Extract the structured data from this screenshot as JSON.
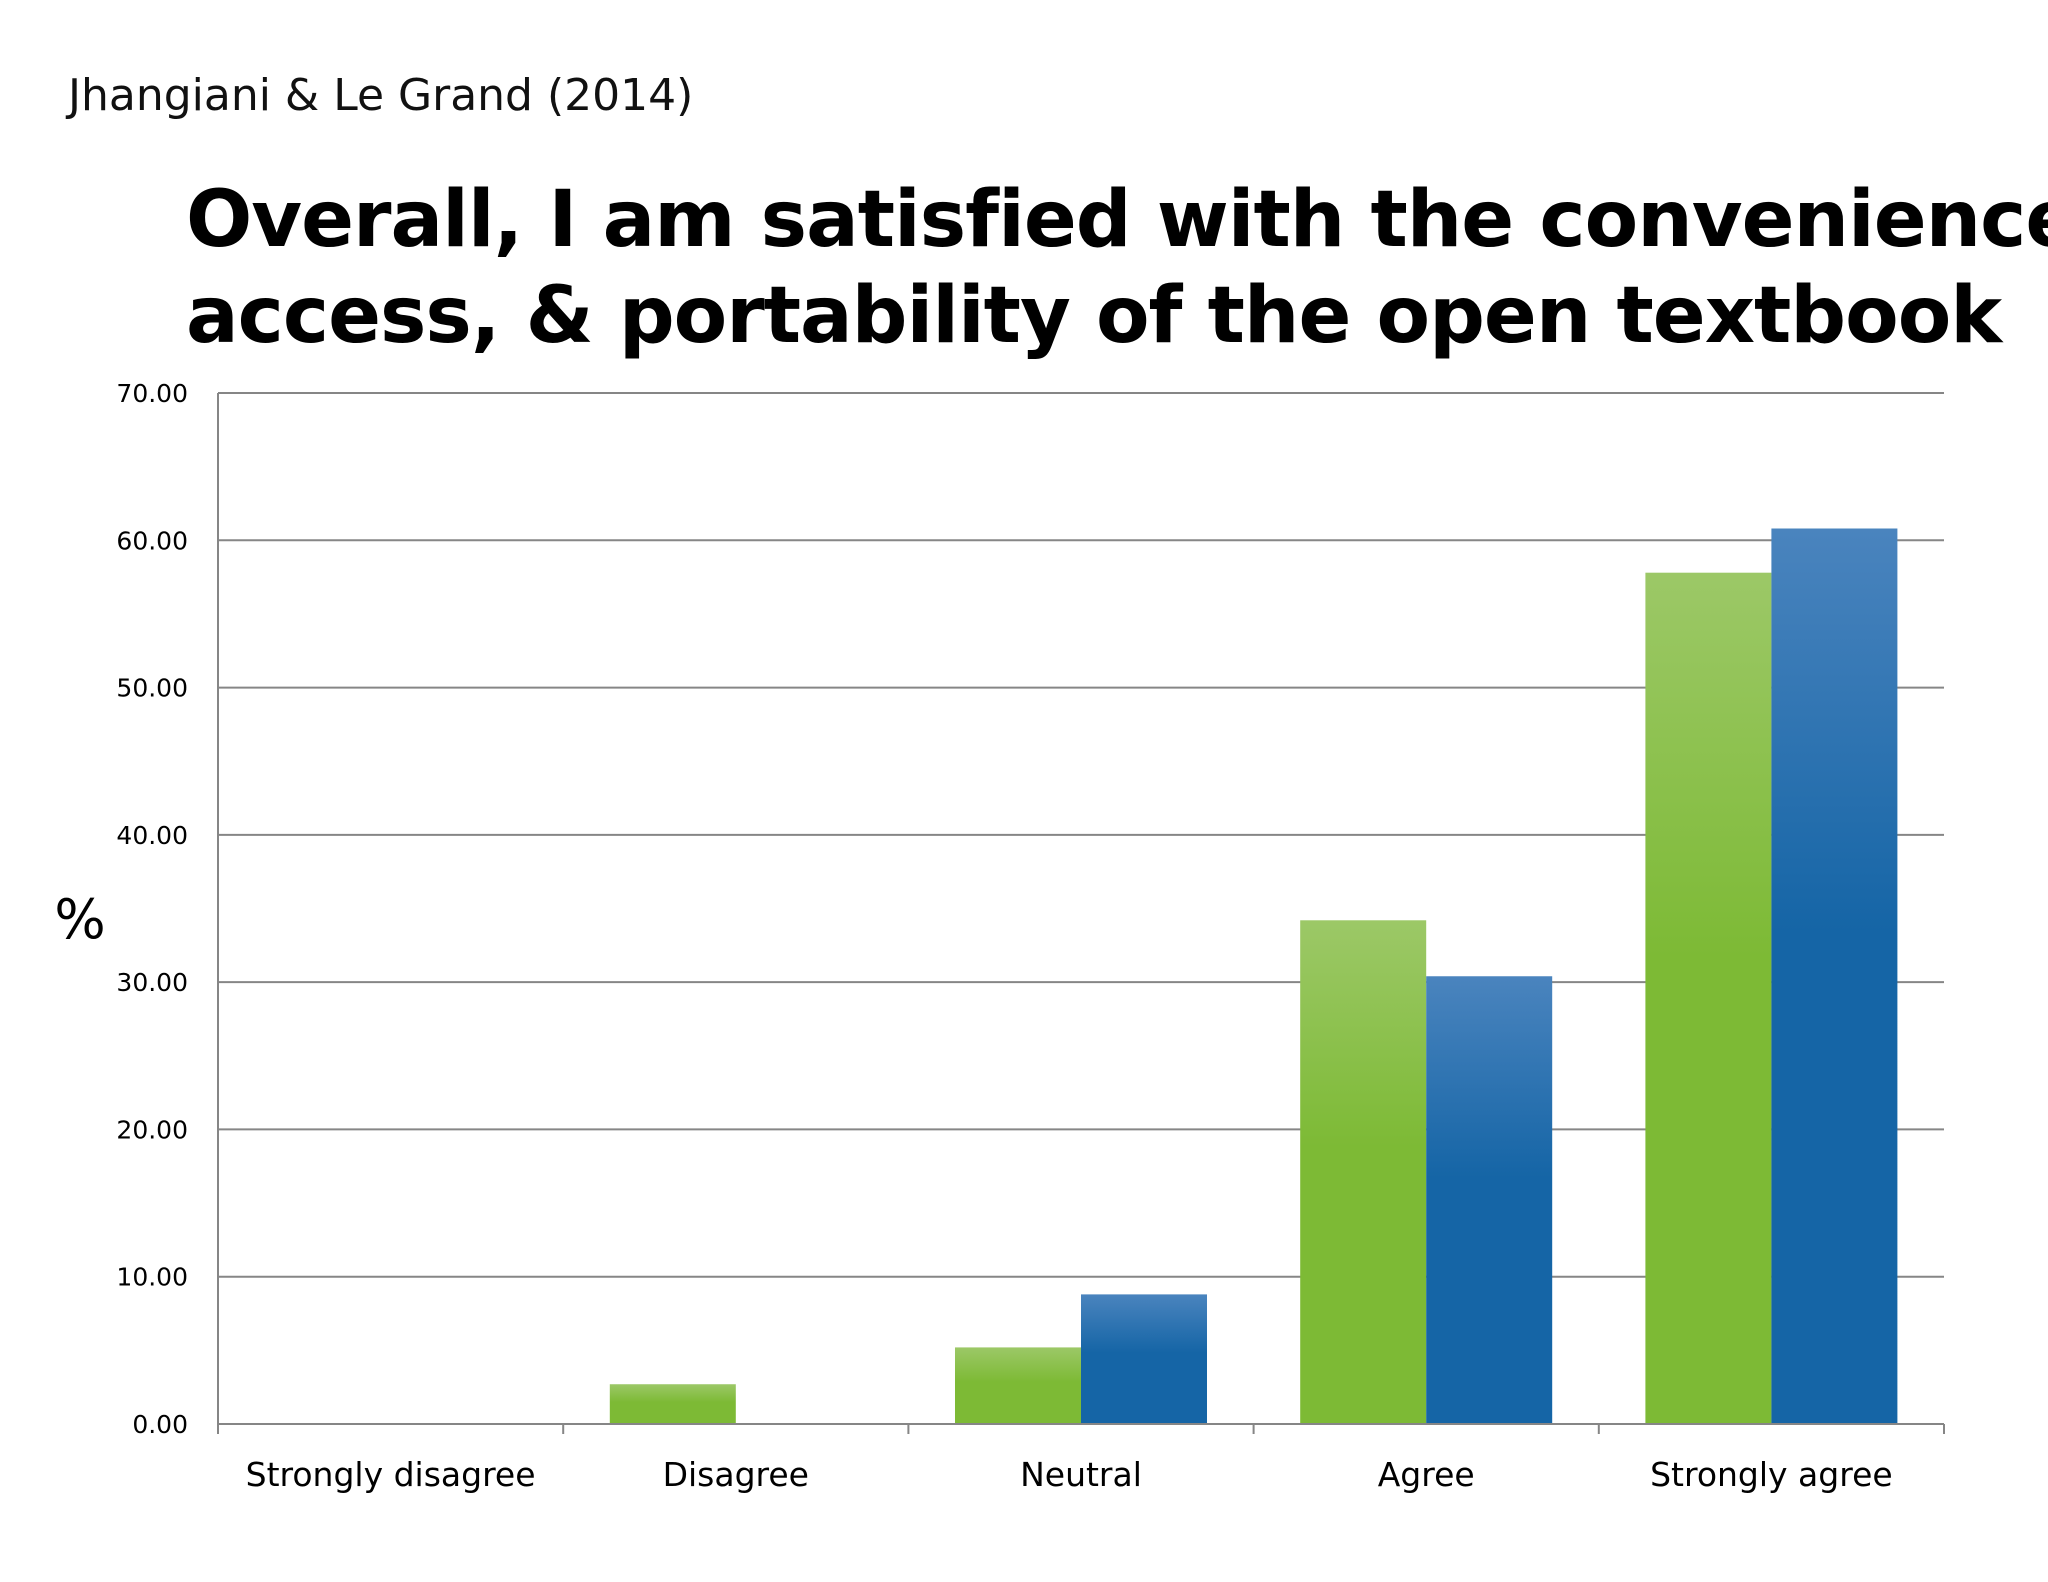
{
  "citation": "Jhangiani & Le Grand (2014)",
  "colors": {
    "series_1": "#7dba35",
    "series_2": "#1565a6",
    "grid": "#868686",
    "axis": "#868686"
  },
  "chart_data": {
    "type": "bar",
    "title": "Overall, I am satisfied with the convenience, access, & portability of the open textbook",
    "title_lines": [
      "Overall, I am satisfied with the convenience,",
      "access, & portability of the open textbook"
    ],
    "ylabel": "%",
    "xlabel": "",
    "ylim": [
      0,
      70
    ],
    "yticks": [
      "0.00",
      "10.00",
      "20.00",
      "30.00",
      "40.00",
      "50.00",
      "60.00",
      "70.00"
    ],
    "grid": true,
    "legend": "none",
    "categories": [
      "Strongly disagree",
      "Disagree",
      "Neutral",
      "Agree",
      "Strongly agree"
    ],
    "series": [
      {
        "values": [
          0,
          2.7,
          5.2,
          34.2,
          57.8
        ],
        "color": "#7dba35"
      },
      {
        "values": [
          0,
          0,
          8.8,
          30.4,
          60.8
        ],
        "color": "#1565a6"
      }
    ]
  }
}
